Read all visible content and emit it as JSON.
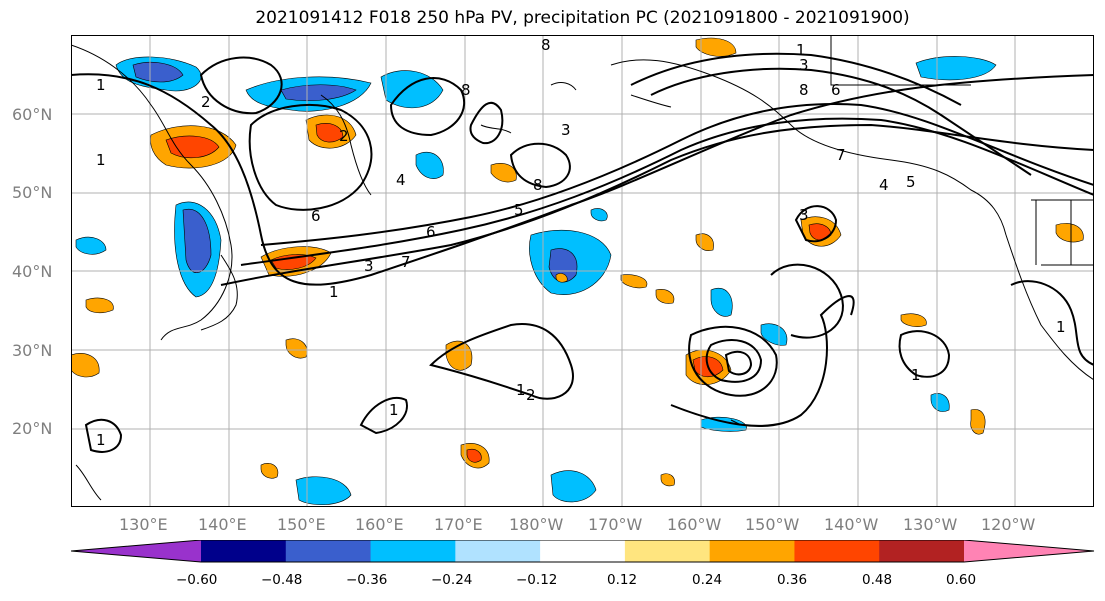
{
  "title": "2021091412 F018 250 hPa PV, precipitation PC (2021091800 - 2021091900)",
  "lat_labels": [
    "60°N",
    "50°N",
    "40°N",
    "30°N",
    "20°N"
  ],
  "lon_labels": [
    "130°E",
    "140°E",
    "150°E",
    "160°E",
    "170°E",
    "180°W",
    "170°W",
    "160°W",
    "150°W",
    "140°W",
    "130°W",
    "120°W"
  ],
  "colorbar": {
    "colors": [
      "#9932cc",
      "#00008b",
      "#3a5fcd",
      "#00bfff",
      "#b0e2ff",
      "#ffffff",
      "#ffe57f",
      "#ffa500",
      "#ff4500",
      "#b22222",
      "#ff83b4"
    ],
    "tick_labels": [
      "−0.60",
      "−0.48",
      "−0.36",
      "−0.24",
      "−0.12",
      "0.12",
      "0.24",
      "0.36",
      "0.48",
      "0.60"
    ]
  },
  "contour_labels": [
    "1",
    "2",
    "3",
    "4",
    "5",
    "6",
    "7",
    "8"
  ],
  "map_lines": {
    "coastlines": "black",
    "gridlines": "gray",
    "pv_contours": "black"
  }
}
